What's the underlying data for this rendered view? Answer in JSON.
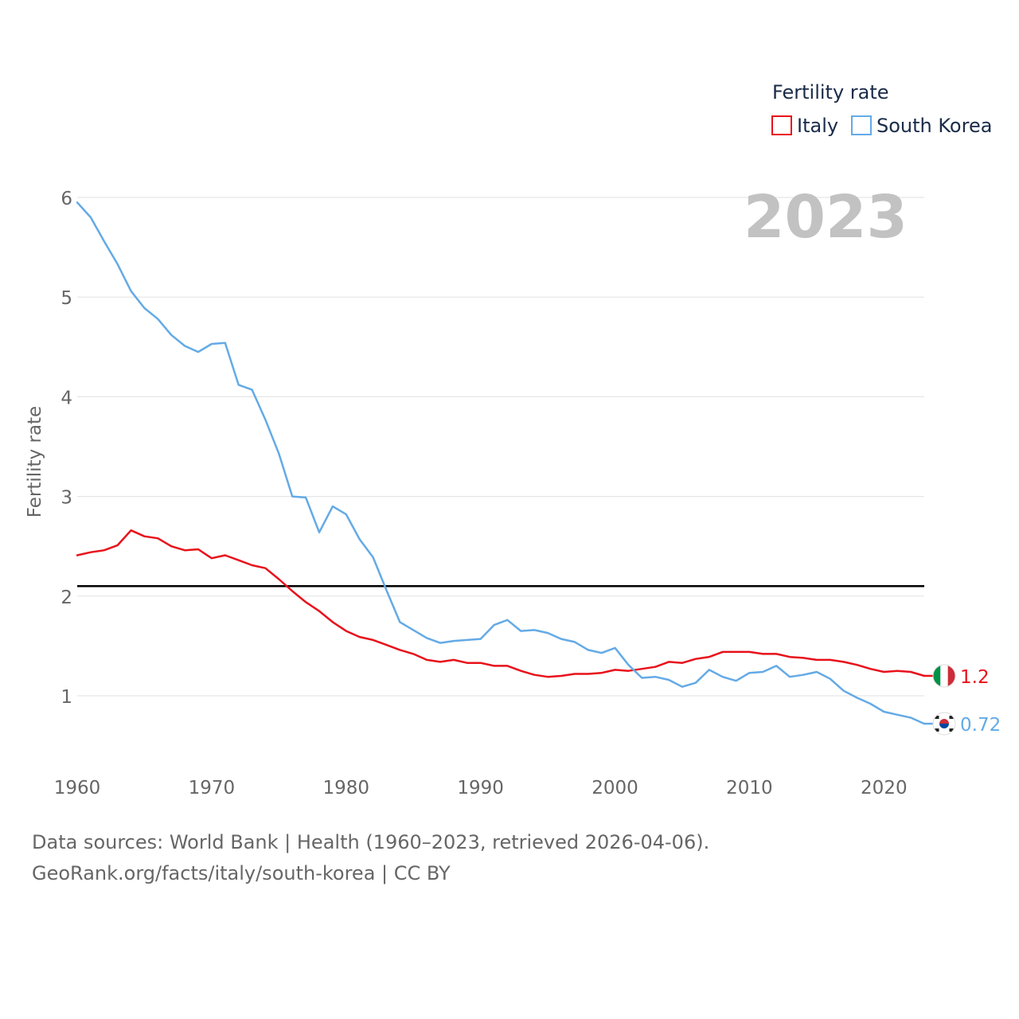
{
  "chart_data": {
    "type": "line",
    "title": "Fertility rate",
    "ylabel": "Fertility rate",
    "xlabel": "",
    "year_label": "2023",
    "xlim": [
      1960,
      2023
    ],
    "ylim": [
      0.5,
      6.1
    ],
    "x_ticks": [
      1960,
      1970,
      1980,
      1990,
      2000,
      2010,
      2020
    ],
    "y_ticks": [
      1,
      2,
      3,
      4,
      5,
      6
    ],
    "reference_line": {
      "value": 2.1,
      "color": "#000000"
    },
    "legend": {
      "title": "Fertility rate",
      "placement": "top-right"
    },
    "series": [
      {
        "name": "Italy",
        "color": "#e8111b",
        "end_label": "1.2",
        "flag": "italy-flag",
        "values": [
          2.41,
          2.44,
          2.46,
          2.51,
          2.66,
          2.6,
          2.58,
          2.5,
          2.46,
          2.47,
          2.38,
          2.41,
          2.36,
          2.31,
          2.28,
          2.17,
          2.05,
          1.94,
          1.85,
          1.74,
          1.65,
          1.59,
          1.56,
          1.51,
          1.46,
          1.42,
          1.36,
          1.34,
          1.36,
          1.33,
          1.33,
          1.3,
          1.3,
          1.25,
          1.21,
          1.19,
          1.2,
          1.22,
          1.22,
          1.23,
          1.26,
          1.25,
          1.27,
          1.29,
          1.34,
          1.33,
          1.37,
          1.39,
          1.44,
          1.44,
          1.44,
          1.42,
          1.42,
          1.39,
          1.38,
          1.36,
          1.36,
          1.34,
          1.31,
          1.27,
          1.24,
          1.25,
          1.24,
          1.2
        ]
      },
      {
        "name": "South Korea",
        "color": "#64aae6",
        "end_label": "0.72",
        "flag": "south-korea-flag",
        "values": [
          5.95,
          5.8,
          5.56,
          5.33,
          5.06,
          4.89,
          4.78,
          4.62,
          4.51,
          4.45,
          4.53,
          4.54,
          4.12,
          4.07,
          3.77,
          3.43,
          3.0,
          2.99,
          2.64,
          2.9,
          2.82,
          2.57,
          2.39,
          2.06,
          1.74,
          1.66,
          1.58,
          1.53,
          1.55,
          1.56,
          1.57,
          1.71,
          1.76,
          1.65,
          1.66,
          1.63,
          1.57,
          1.54,
          1.46,
          1.43,
          1.48,
          1.31,
          1.18,
          1.19,
          1.16,
          1.09,
          1.13,
          1.26,
          1.19,
          1.15,
          1.23,
          1.24,
          1.3,
          1.19,
          1.21,
          1.24,
          1.17,
          1.05,
          0.98,
          0.92,
          0.84,
          0.81,
          0.78,
          0.72
        ]
      }
    ]
  },
  "footer": {
    "source_line": "Data sources: World Bank | Health (1960–2023, retrieved 2026-04-06).",
    "attribution": "GeoRank.org/facts/italy/south-korea | CC BY"
  }
}
